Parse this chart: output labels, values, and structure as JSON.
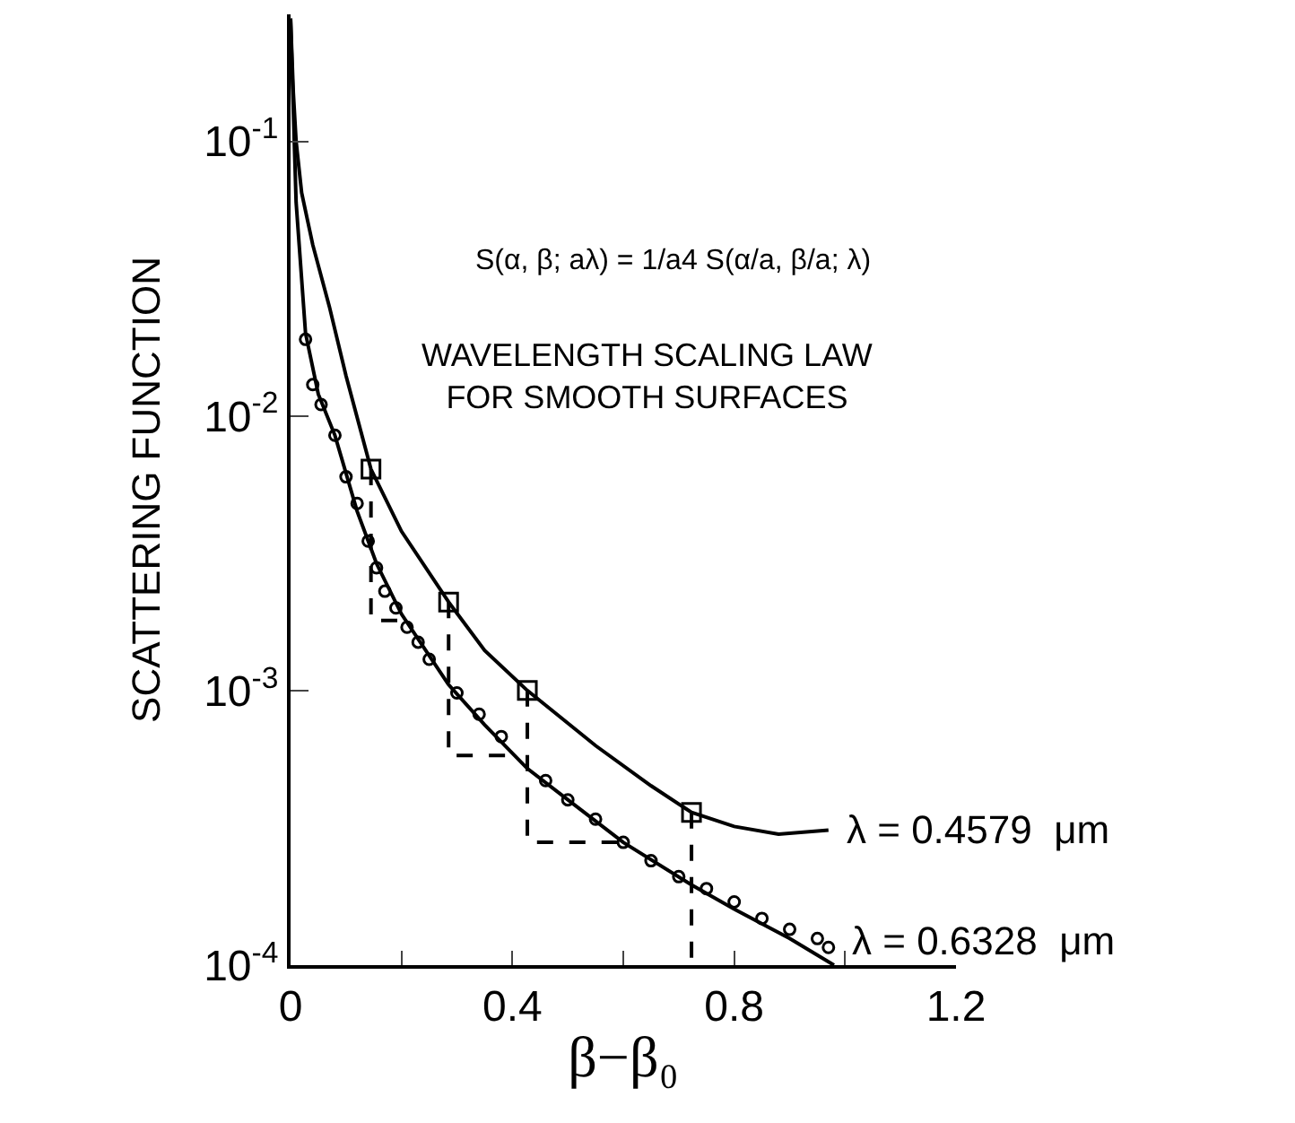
{
  "chart_data": {
    "type": "line",
    "xlabel": "β−β₀",
    "ylabel": "SCATTERING FUNCTION",
    "log": "y",
    "grid": false,
    "legend": false,
    "xlim": [
      0,
      1.2
    ],
    "xticks": [
      0,
      {
        "value": 0.2,
        "label": null
      },
      0.4,
      {
        "value": 0.6,
        "label": null
      },
      0.8,
      {
        "value": 1.0,
        "label": null
      },
      1.2
    ],
    "ylim": [
      0.0001,
      0.29
    ],
    "yticks": [
      {
        "value": 0.0001,
        "label": "10$^{-4}$"
      },
      {
        "value": 0.001,
        "label": "10$^{-3}$"
      },
      {
        "value": 0.01,
        "label": "10$^{-2}$"
      },
      {
        "value": 0.1,
        "label": "10$^{-1}$"
      }
    ],
    "annotations": [
      "S(α, β; aλ) = 1/a4 S(α/a, β/a; λ)",
      "WAVELENGTH SCALING LAW\nFOR SMOOTH SURFACES"
    ],
    "series": [
      {
        "name": "λ = 0.4579  μm",
        "color": "#000000",
        "marker": "none",
        "line_style": "solid",
        "x": [
          0,
          0.005,
          0.01,
          0.02,
          0.04,
          0.07,
          0.1,
          0.145,
          0.2,
          0.285,
          0.35,
          0.427,
          0.55,
          0.65,
          0.723,
          0.8,
          0.88,
          0.97
        ],
        "values": [
          0.28,
          0.15,
          0.1,
          0.065,
          0.042,
          0.025,
          0.014,
          0.0064,
          0.0038,
          0.0021,
          0.0014,
          0.001,
          0.00063,
          0.00045,
          0.00036,
          0.00032,
          0.0003,
          0.00031
        ]
      },
      {
        "name": "λ = 0.6328  μm",
        "color": "#000000",
        "marker": "none",
        "line_style": "solid",
        "x": [
          0,
          0.01,
          0.027,
          0.05,
          0.08,
          0.12,
          0.155,
          0.2,
          0.285,
          0.35,
          0.427,
          0.5,
          0.6,
          0.723,
          0.8,
          0.9,
          0.98
        ],
        "values": [
          0.28,
          0.06,
          0.02,
          0.012,
          0.0085,
          0.0045,
          0.0029,
          0.0019,
          0.00105,
          0.00075,
          0.00052,
          0.0004,
          0.00028,
          0.000196,
          0.00016,
          0.000125,
          0.0001
        ]
      },
      {
        "type": "scatter",
        "color": "#000000",
        "marker": "square",
        "x": [
          0.145,
          0.285,
          0.427,
          0.723
        ],
        "values": [
          0.0064,
          0.0021,
          0.001,
          0.00036
        ]
      },
      {
        "type": "scatter",
        "color": "#000000",
        "marker": "circle",
        "x": [
          0.027,
          0.04,
          0.055,
          0.08,
          0.1,
          0.12,
          0.14,
          0.155,
          0.17,
          0.19,
          0.21,
          0.23,
          0.25,
          0.3,
          0.34,
          0.38,
          0.42,
          0.46,
          0.5,
          0.55,
          0.6,
          0.65,
          0.7,
          0.75,
          0.8,
          0.85,
          0.9,
          0.95,
          0.97
        ],
        "values": [
          0.019,
          0.013,
          0.011,
          0.0085,
          0.006,
          0.0048,
          0.0035,
          0.0028,
          0.0023,
          0.002,
          0.0017,
          0.0015,
          0.0013,
          0.00098,
          0.00082,
          0.00068,
          null,
          0.00047,
          0.0004,
          0.00034,
          0.00028,
          0.00024,
          0.00021,
          0.00019,
          0.00017,
          0.000148,
          0.000135,
          0.000125,
          0.000116
        ]
      },
      {
        "color": "#000000",
        "marker": "none",
        "line_style": "dashed",
        "x": [
          0.145,
          0.145,
          0.2,
          null,
          0.285,
          0.285,
          0.4,
          null,
          0.427,
          0.427,
          0.59,
          null,
          0.723,
          0.723
        ],
        "values": [
          0.0064,
          0.0018,
          0.0018,
          null,
          0.0021,
          0.00058,
          0.00058,
          null,
          0.001,
          0.00028,
          0.00028,
          null,
          0.00036,
          0.0001
        ]
      }
    ]
  }
}
